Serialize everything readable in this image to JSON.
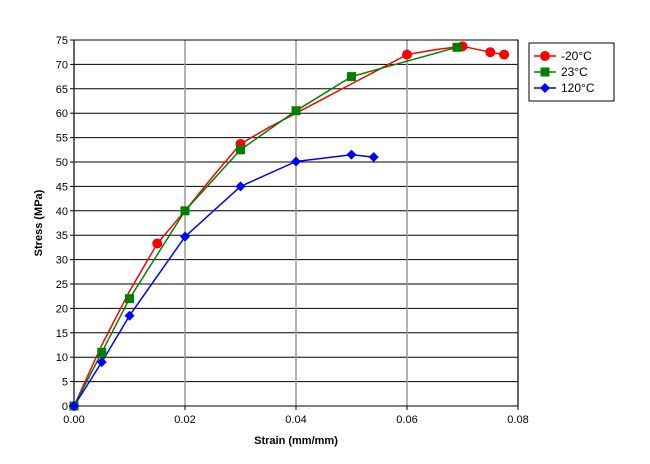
{
  "chart_data": {
    "type": "line",
    "title": "",
    "xlabel": "Strain (mm/mm)",
    "ylabel": "Stress (MPa)",
    "xlim": [
      0,
      0.08
    ],
    "ylim": [
      0,
      75
    ],
    "x_ticks": [
      0,
      0.02,
      0.04,
      0.06,
      0.08
    ],
    "x_tick_labels": [
      "0.00",
      "0.02",
      "0.04",
      "0.06",
      "0.08"
    ],
    "y_ticks": [
      0,
      5,
      10,
      15,
      20,
      25,
      30,
      35,
      40,
      45,
      50,
      55,
      60,
      65,
      70,
      75
    ],
    "y_tick_labels": [
      "0",
      "5",
      "10",
      "15",
      "20",
      "25",
      "30",
      "35",
      "40",
      "45",
      "50",
      "55",
      "60",
      "65",
      "70",
      "75"
    ],
    "grid": true,
    "legend_position": "outside-top-right",
    "series": [
      {
        "name": "-20°C",
        "color": "#ff0000",
        "marker": "circle",
        "x": [
          0,
          0.015,
          0.03,
          0.06,
          0.07,
          0.075,
          0.0775
        ],
        "y": [
          0,
          33.3,
          53.7,
          72.0,
          73.7,
          72.5,
          72.0
        ],
        "curve_x": [
          0,
          0.005,
          0.01,
          0.015,
          0.02,
          0.025,
          0.03,
          0.035,
          0.04,
          0.045,
          0.05,
          0.055,
          0.06,
          0.065,
          0.07,
          0.075,
          0.0775
        ],
        "curve_y": [
          0,
          12.5,
          23.5,
          33.3,
          40.0,
          47.0,
          53.7,
          57.0,
          60.0,
          63.0,
          66.0,
          69.0,
          72.0,
          73.0,
          73.7,
          72.5,
          72.0
        ]
      },
      {
        "name": "23°C",
        "color": "#008000",
        "marker": "square",
        "x": [
          0,
          0.005,
          0.01,
          0.02,
          0.03,
          0.04,
          0.05,
          0.069
        ],
        "y": [
          0,
          11.0,
          22.0,
          40.0,
          52.5,
          60.5,
          67.5,
          73.5
        ]
      },
      {
        "name": "120°C",
        "color": "#0000ff",
        "marker": "diamond",
        "x": [
          0,
          0.005,
          0.01,
          0.02,
          0.03,
          0.04,
          0.05,
          0.054
        ],
        "y": [
          0,
          9.0,
          18.5,
          34.7,
          45.0,
          50.1,
          51.5,
          51.0
        ]
      }
    ]
  }
}
